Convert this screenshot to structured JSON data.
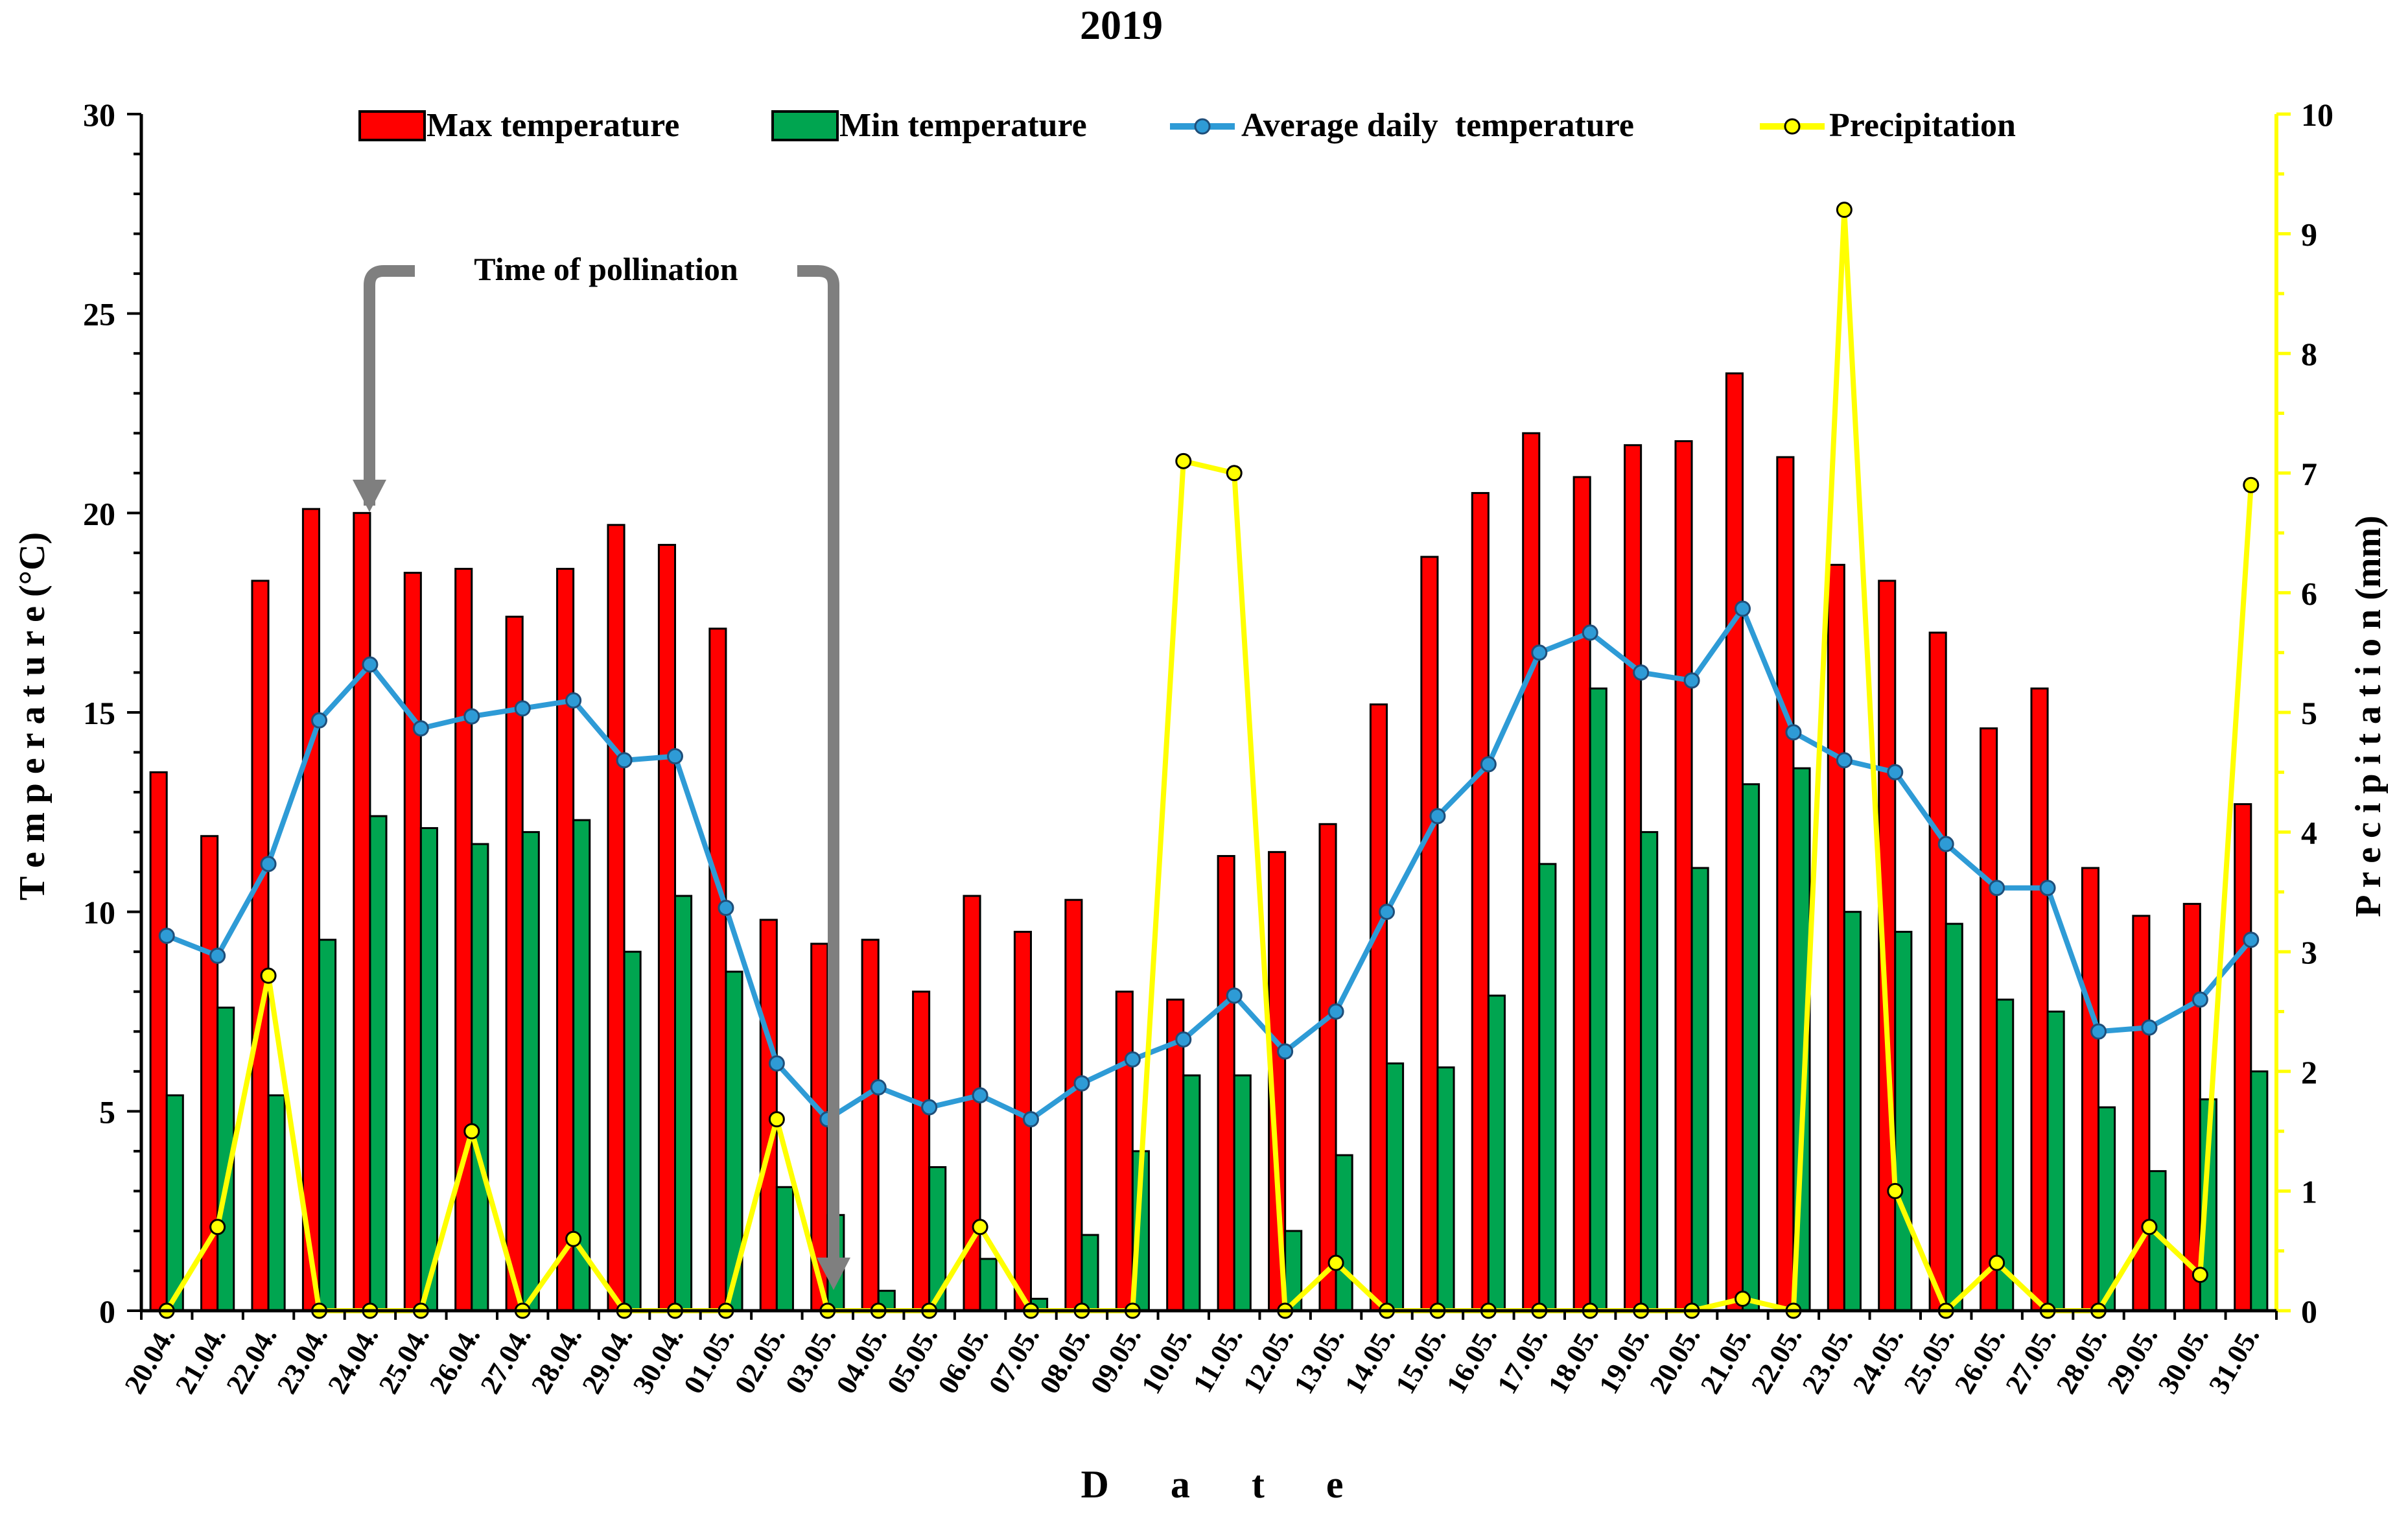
{
  "chart_data": {
    "type": "bar",
    "title": "2019",
    "xlabel": "D a t e",
    "ylabel": "T e m p e r a t u r e (°C)",
    "y2label": "P r e c i p i t a t i o n (mm)",
    "ylim": [
      0,
      30
    ],
    "y2lim": [
      0,
      10
    ],
    "yticks": [
      "0",
      "5",
      "10",
      "15",
      "20",
      "25",
      "30"
    ],
    "y2ticks": [
      "0",
      "1",
      "2",
      "3",
      "4",
      "5",
      "6",
      "7",
      "8",
      "9",
      "10"
    ],
    "annotation": "Time of pollination",
    "annotation_range": [
      "24.04.",
      "03.05."
    ],
    "categories": [
      "20.04.",
      "21.04.",
      "22.04.",
      "23.04.",
      "24.04.",
      "25.04.",
      "26.04.",
      "27.04.",
      "28.04.",
      "29.04.",
      "30.04.",
      "01.05.",
      "02.05.",
      "03.05.",
      "04.05.",
      "05.05.",
      "06.05.",
      "07.05.",
      "08.05.",
      "09.05.",
      "10.05.",
      "11.05.",
      "12.05.",
      "13.05.",
      "14.05.",
      "15.05.",
      "16.05.",
      "17.05.",
      "18.05.",
      "19.05.",
      "20.05.",
      "21.05.",
      "22.05.",
      "23.05.",
      "24.05.",
      "25.05.",
      "26.05.",
      "27.05.",
      "28.05.",
      "29.05.",
      "30.05.",
      "31.05."
    ],
    "series": [
      {
        "name": "Max temperature",
        "type": "bar",
        "axis": "left",
        "color": "#ff0000",
        "values": [
          13.5,
          11.9,
          18.3,
          20.1,
          20.0,
          18.5,
          18.6,
          17.4,
          18.6,
          19.7,
          19.2,
          17.1,
          9.8,
          9.2,
          9.3,
          8.0,
          10.4,
          9.5,
          10.3,
          8.0,
          7.8,
          11.4,
          11.5,
          12.2,
          15.2,
          18.9,
          20.5,
          22.0,
          20.9,
          21.7,
          21.8,
          23.5,
          21.4,
          18.7,
          18.3,
          17.0,
          14.6,
          15.6,
          11.1,
          9.9,
          10.2,
          12.7
        ]
      },
      {
        "name": "Min temperature",
        "type": "bar",
        "axis": "left",
        "color": "#00a550",
        "values": [
          5.4,
          7.6,
          5.4,
          9.3,
          12.4,
          12.1,
          11.7,
          12.0,
          12.3,
          9.0,
          10.4,
          8.5,
          3.1,
          2.4,
          0.5,
          3.6,
          1.3,
          0.3,
          1.9,
          4.0,
          5.9,
          5.9,
          2.0,
          3.9,
          6.2,
          6.1,
          7.9,
          11.2,
          15.6,
          12.0,
          11.1,
          13.2,
          13.6,
          10.0,
          9.5,
          9.7,
          7.8,
          7.5,
          5.1,
          3.5,
          5.3,
          6.0
        ]
      },
      {
        "name": "Average daily  temperature",
        "type": "line",
        "axis": "left",
        "color": "#2e9bd6",
        "values": [
          9.4,
          8.9,
          11.2,
          14.8,
          16.2,
          14.6,
          14.9,
          15.1,
          15.3,
          13.8,
          13.9,
          10.1,
          6.2,
          4.8,
          5.6,
          5.1,
          5.4,
          4.8,
          5.7,
          6.3,
          6.8,
          7.9,
          6.5,
          7.5,
          10.0,
          12.4,
          13.7,
          16.5,
          17.0,
          16.0,
          15.8,
          17.6,
          14.5,
          13.8,
          13.5,
          11.7,
          10.6,
          10.6,
          7.0,
          7.1,
          7.8,
          9.3
        ]
      },
      {
        "name": "Precipitation",
        "type": "line",
        "axis": "right",
        "color": "#ffff00",
        "values": [
          0,
          0.7,
          2.8,
          0,
          0,
          0,
          1.5,
          0,
          0.6,
          0,
          0,
          0,
          1.6,
          0,
          0,
          0,
          0.7,
          0,
          0,
          0,
          7.1,
          7.0,
          0,
          0.4,
          0,
          0,
          0,
          0,
          0,
          0,
          0,
          0.1,
          0,
          9.2,
          1.0,
          0,
          0.4,
          0,
          0,
          0.7,
          0.3,
          6.9
        ]
      }
    ]
  }
}
